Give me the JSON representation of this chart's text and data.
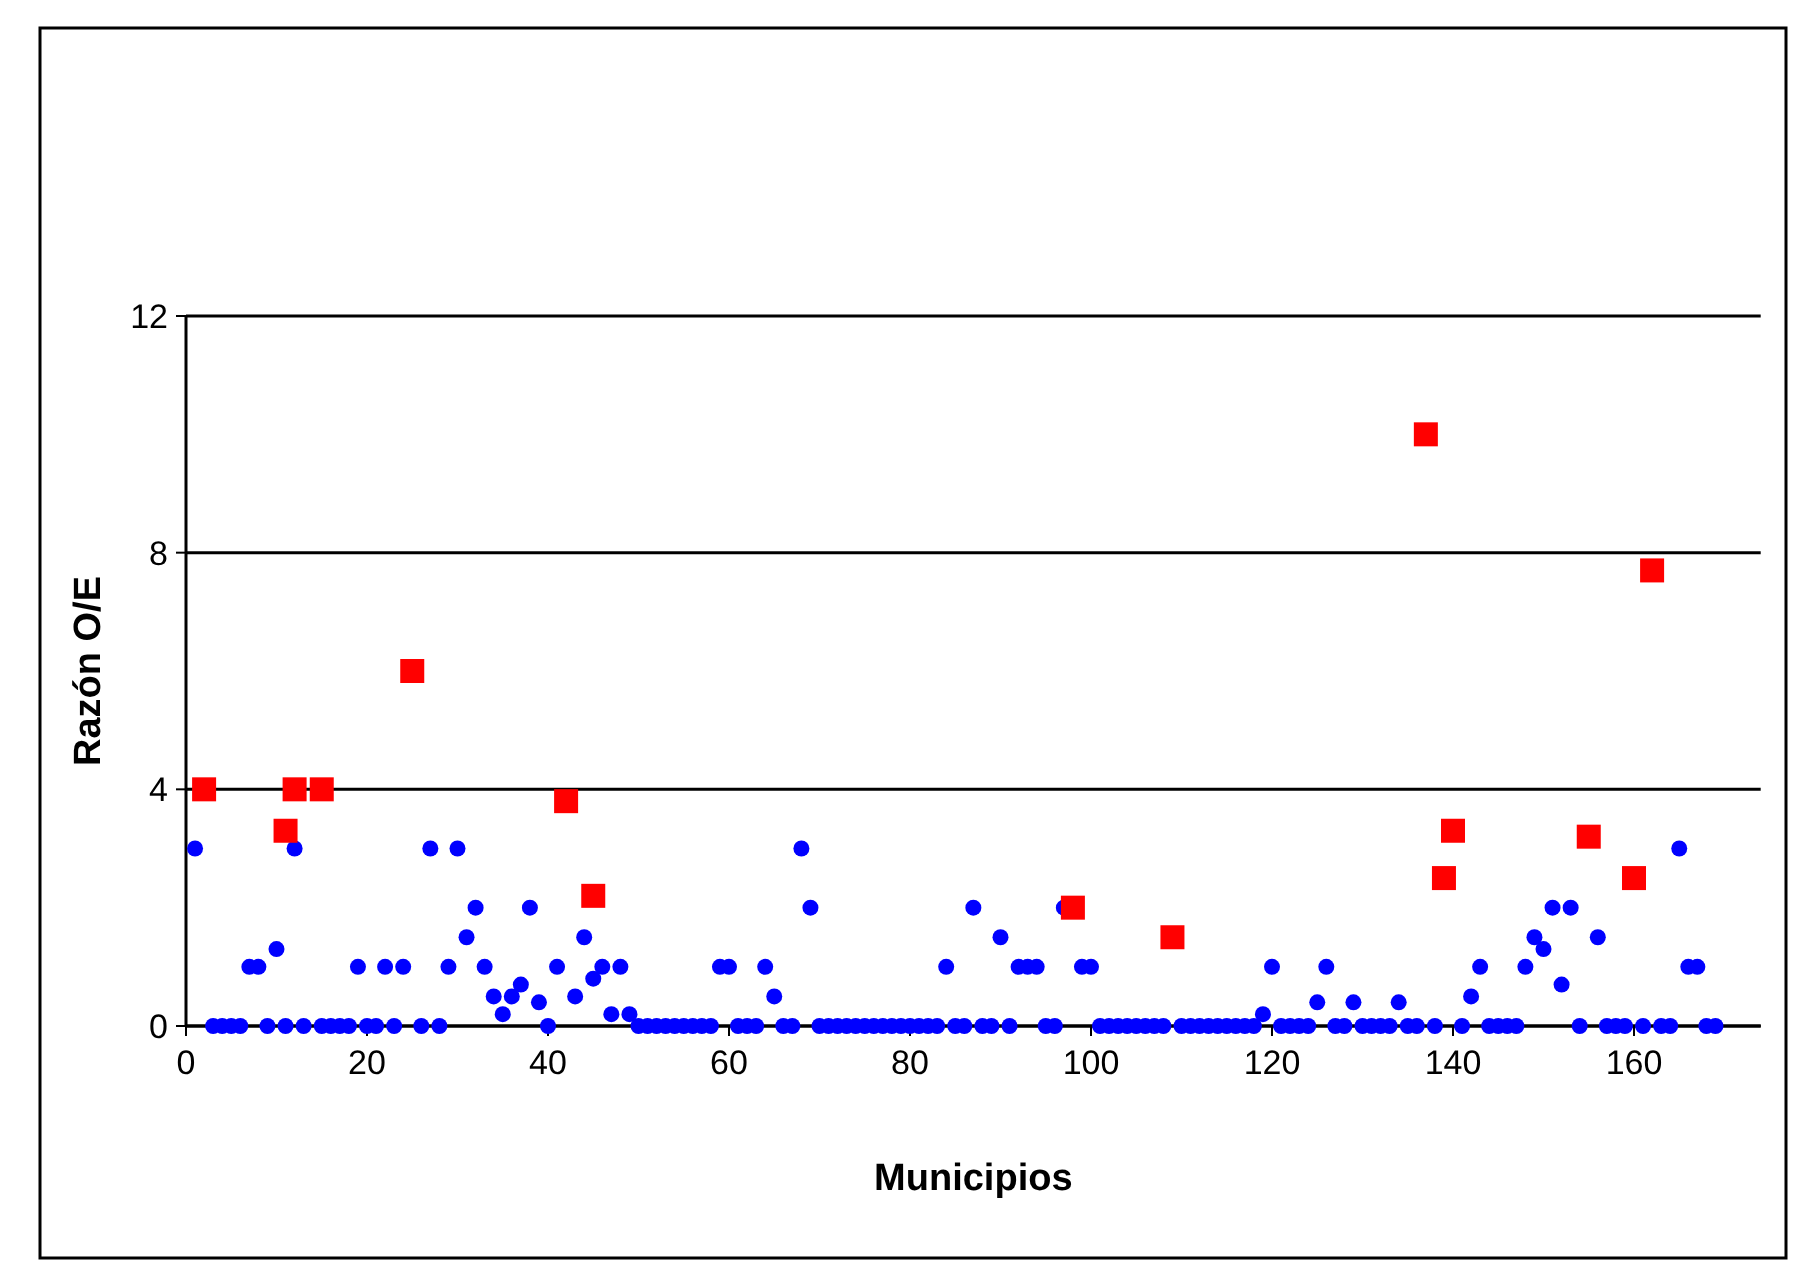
{
  "chart_data": {
    "type": "scatter",
    "xlabel": "Municipios",
    "ylabel": "Razón O/E",
    "xlim": [
      0,
      174
    ],
    "xticks": [
      0,
      20,
      40,
      60,
      80,
      100,
      120,
      140,
      160
    ],
    "ylim": [
      0,
      12
    ],
    "yticks": [
      0,
      4,
      8,
      12
    ],
    "grid": "y",
    "series": [
      {
        "color": "#0000ff",
        "marker": "circle",
        "x": [
          1,
          3,
          4,
          5,
          6,
          7,
          8,
          9,
          10,
          11,
          12,
          13,
          15,
          16,
          17,
          18,
          19,
          20,
          21,
          22,
          23,
          24,
          26,
          27,
          28,
          29,
          30,
          31,
          32,
          33,
          34,
          35,
          36,
          37,
          38,
          39,
          40,
          41,
          43,
          44,
          45,
          46,
          47,
          48,
          49,
          50,
          51,
          52,
          53,
          54,
          55,
          56,
          57,
          58,
          59,
          60,
          61,
          62,
          63,
          64,
          65,
          66,
          67,
          68,
          69,
          70,
          71,
          72,
          73,
          74,
          75,
          76,
          77,
          78,
          79,
          80,
          81,
          82,
          83,
          84,
          85,
          86,
          87,
          88,
          89,
          90,
          91,
          92,
          93,
          94,
          95,
          96,
          97,
          99,
          100,
          101,
          102,
          103,
          104,
          105,
          106,
          107,
          108,
          110,
          111,
          112,
          113,
          114,
          115,
          116,
          117,
          118,
          119,
          120,
          121,
          122,
          123,
          124,
          125,
          126,
          127,
          128,
          129,
          130,
          131,
          132,
          133,
          134,
          135,
          136,
          138,
          141,
          142,
          143,
          144,
          145,
          146,
          147,
          148,
          149,
          150,
          151,
          152,
          153,
          154,
          156,
          157,
          158,
          159,
          161,
          163,
          164,
          165,
          166,
          167,
          168,
          169
        ],
        "values": [
          3,
          0,
          0,
          0,
          0,
          1,
          1,
          0,
          1.3,
          0,
          3,
          0,
          0,
          0,
          0,
          0,
          1,
          0,
          0,
          1,
          0,
          1,
          0,
          3,
          0,
          1,
          3,
          1.5,
          2,
          1,
          0.5,
          0.2,
          0.5,
          0.7,
          2,
          0.4,
          0,
          1,
          0.5,
          1.5,
          0.8,
          1,
          0.2,
          1,
          0.2,
          0,
          0,
          0,
          0,
          0,
          0,
          0,
          0,
          0,
          1,
          1,
          0,
          0,
          0,
          1,
          0.5,
          0,
          0,
          3,
          2,
          0,
          0,
          0,
          0,
          0,
          0,
          0,
          0,
          0,
          0,
          0,
          0,
          0,
          0,
          1,
          0,
          0,
          2,
          0,
          0,
          1.5,
          0,
          1,
          1,
          1,
          0,
          0,
          2,
          1,
          1,
          0,
          0,
          0,
          0,
          0,
          0,
          0,
          0,
          0,
          0,
          0,
          0,
          0,
          0,
          0,
          0,
          0,
          0.2,
          1,
          0,
          0,
          0,
          0,
          0.4,
          1,
          0,
          0,
          0.4,
          0,
          0,
          0,
          0,
          0.4,
          0,
          0,
          0,
          0,
          0.5,
          1,
          0,
          0,
          0,
          0,
          1,
          1.5,
          1.3,
          2,
          0.7,
          2,
          0,
          1.5,
          0,
          0,
          0,
          0,
          0,
          0,
          3,
          1,
          1,
          0,
          0
        ]
      },
      {
        "color": "#ff0000",
        "marker": "square",
        "x": [
          2,
          11,
          12,
          15,
          25,
          42,
          45,
          98,
          109,
          137,
          139,
          140,
          155,
          160,
          162
        ],
        "values": [
          4,
          3.3,
          4,
          4,
          6,
          3.8,
          2.2,
          2,
          1.5,
          10,
          2.5,
          3.3,
          3.2,
          2.5,
          7.7
        ]
      }
    ]
  }
}
